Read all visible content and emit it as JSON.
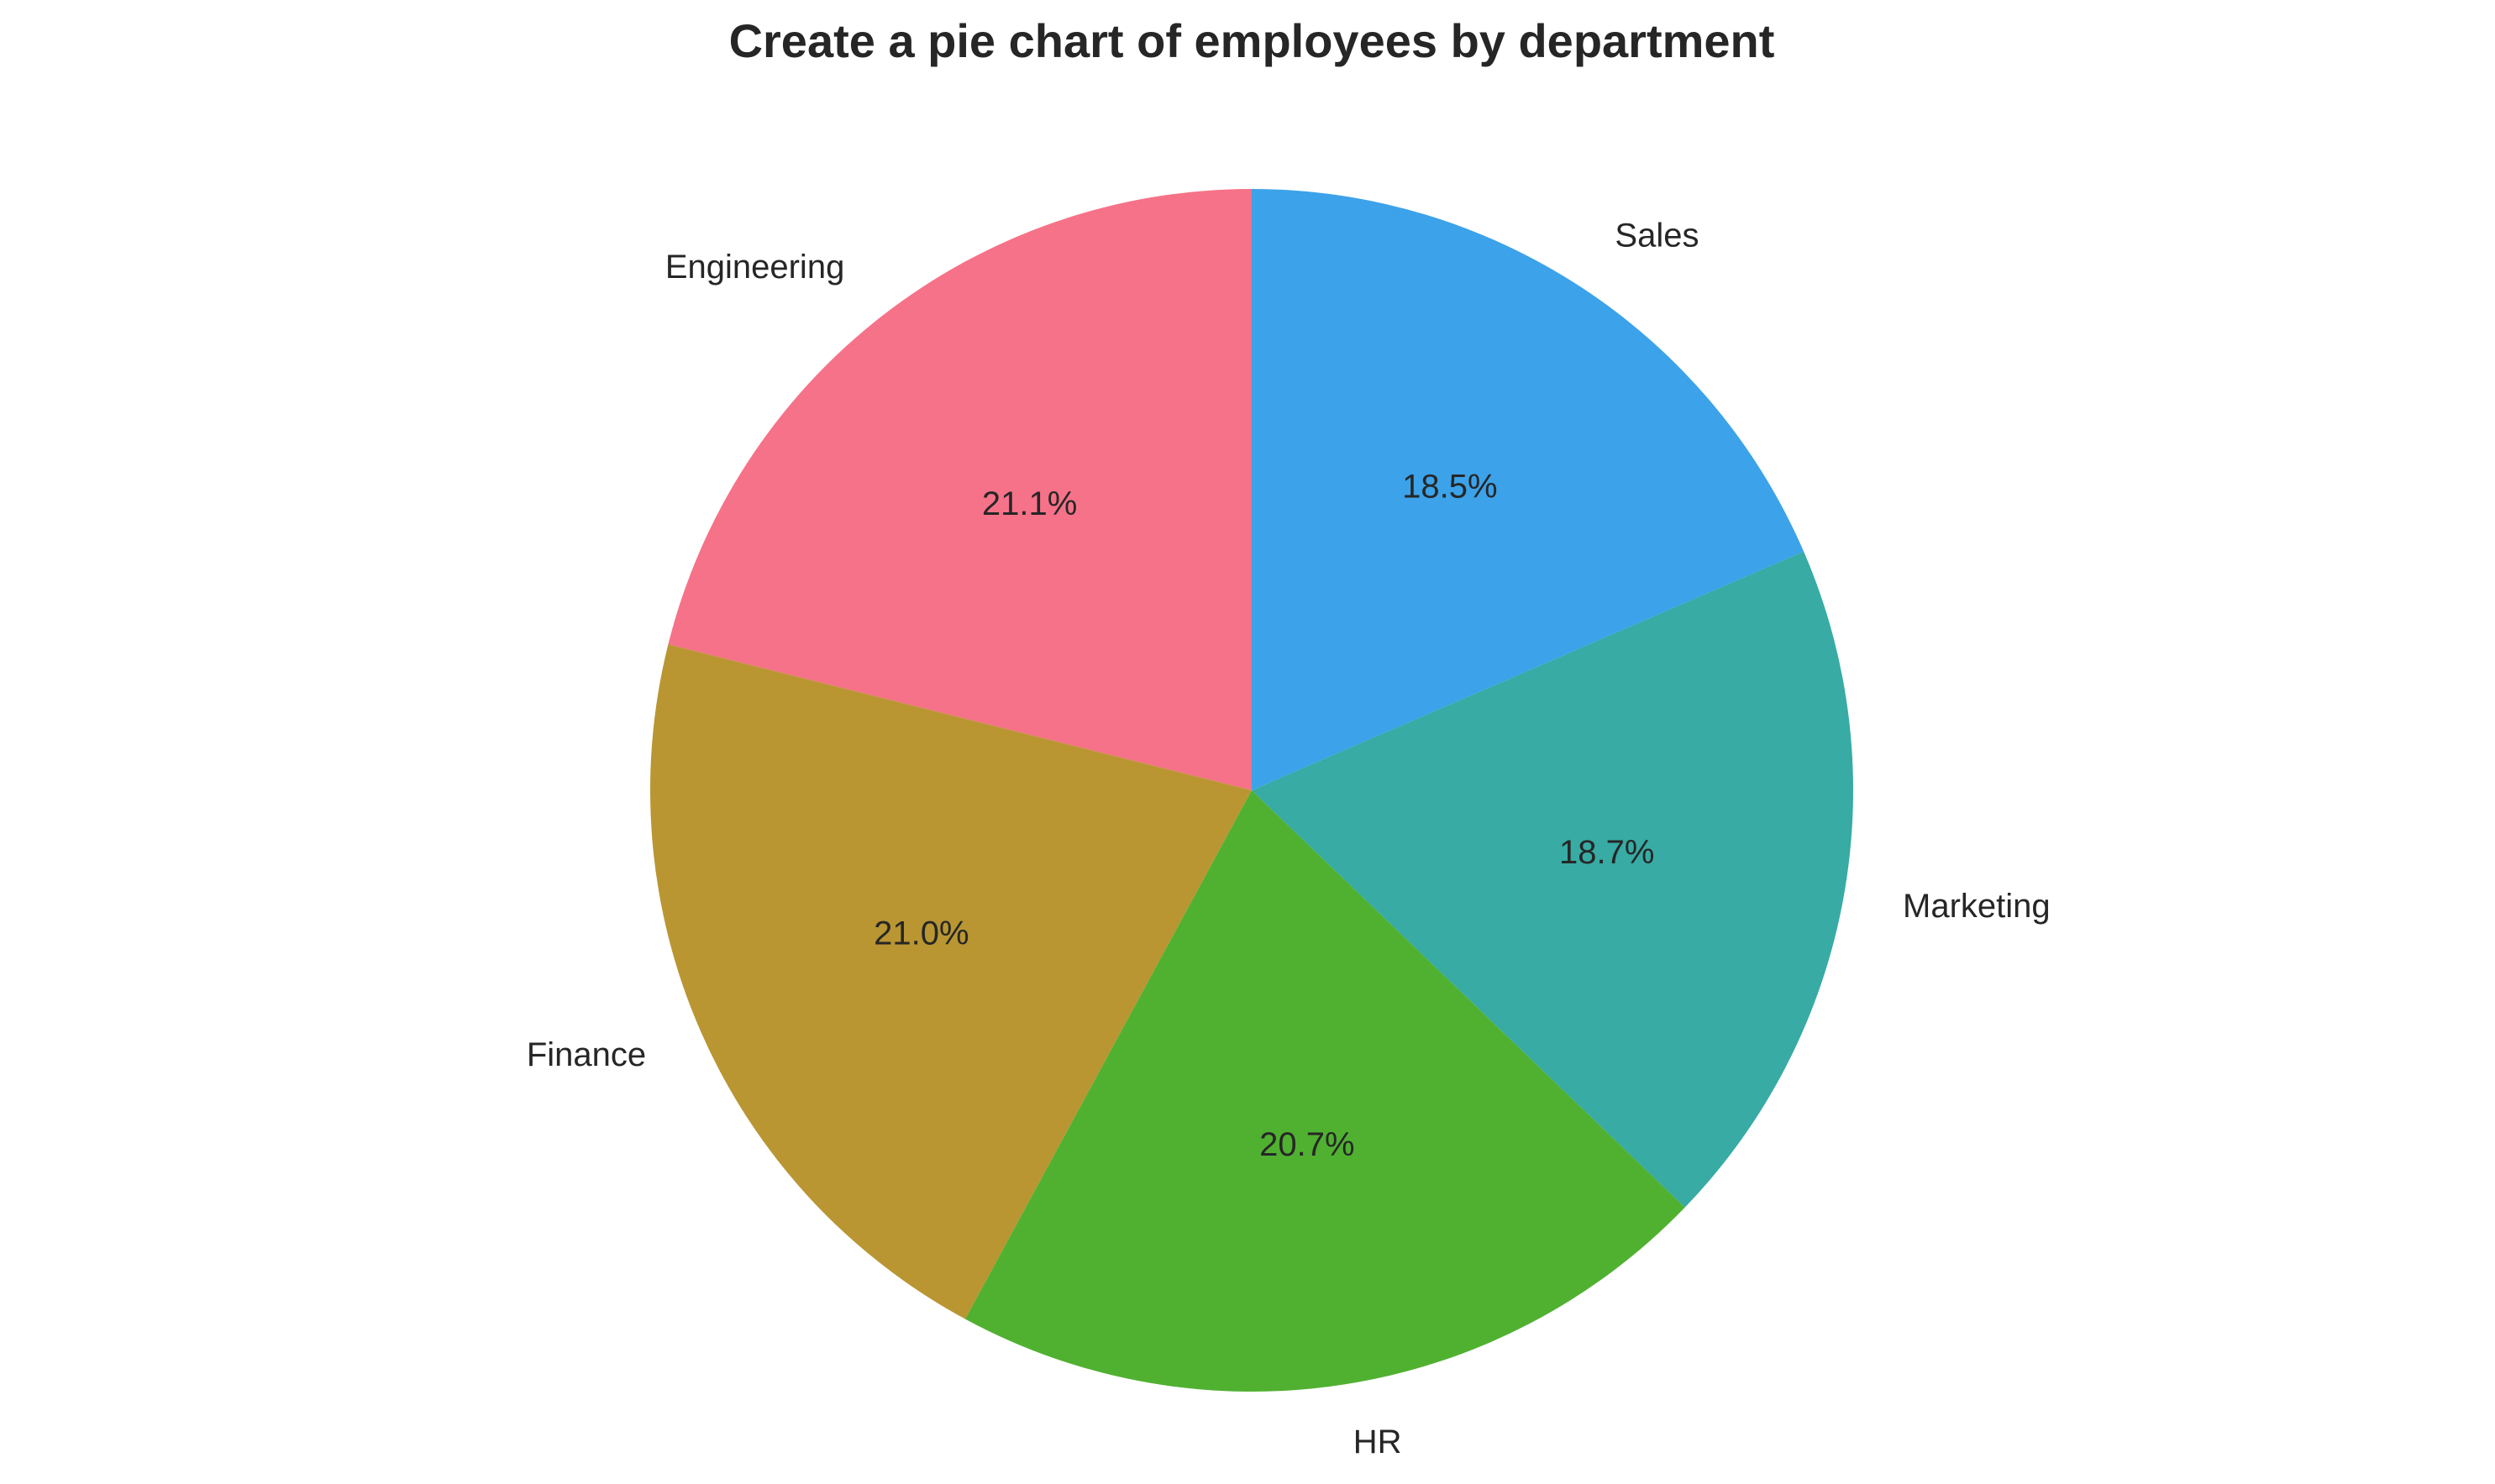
{
  "chart_data": {
    "type": "pie",
    "title": "Create a pie chart of employees by department",
    "start_angle_deg": 90,
    "direction": "counterclockwise",
    "slices": [
      {
        "label": "Engineering",
        "value": 21.1,
        "pct_label": "21.1%",
        "color": "#f67288"
      },
      {
        "label": "Finance",
        "value": 21.0,
        "pct_label": "21.0%",
        "color": "#b99632"
      },
      {
        "label": "HR",
        "value": 20.7,
        "pct_label": "20.7%",
        "color": "#50b131"
      },
      {
        "label": "Marketing",
        "value": 18.7,
        "pct_label": "18.7%",
        "color": "#37aba4"
      },
      {
        "label": "Sales",
        "value": 18.5,
        "pct_label": "18.5%",
        "color": "#3ca2e9"
      }
    ],
    "legend": "none",
    "grid": false
  }
}
